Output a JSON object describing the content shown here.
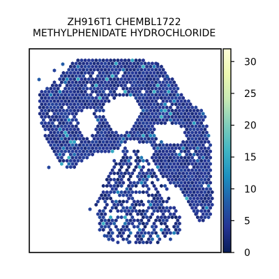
{
  "chart_data": {
    "type": "heatmap",
    "title_lines": [
      "ZH916T1 CHEMBL1722",
      "METHYLPHENIDATE HYDROCHLORIDE"
    ],
    "xlabel": "",
    "ylabel": "",
    "grid": false,
    "colorbar": {
      "range": [
        0,
        32
      ],
      "ticks": [
        0,
        5,
        10,
        15,
        20,
        25,
        30
      ],
      "colormap": [
        "#081d58",
        "#253494",
        "#225ea8",
        "#1d91c0",
        "#41b6c4",
        "#7fcdbb",
        "#c7e9b4",
        "#edf8b1",
        "#ffffd9"
      ],
      "position": "right"
    },
    "spots_description": "Hexagonal spatial transcriptomics spots; most values between 1 and 6, sparse spots up to about 15"
  }
}
